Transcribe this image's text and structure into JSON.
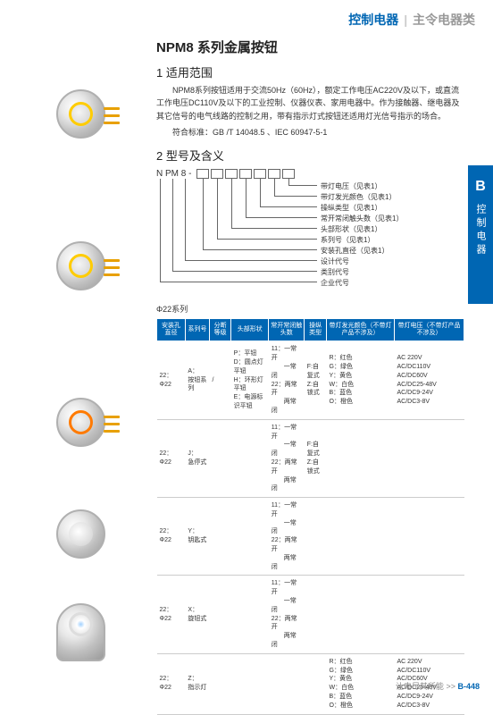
{
  "header": {
    "category1": "控制电器",
    "category2": "主令电器类"
  },
  "title": "NPM8 系列金属按钮",
  "section1": {
    "num": "1",
    "heading": "适用范围",
    "para1": "NPM8系列按钮适用于交流50Hz（60Hz），额定工作电压AC220V及以下，或直流工作电压DC110V及以下的工业控制、仪器仪表、家用电器中。作为接触器、继电器及其它信号的电气线路的控制之用，带有指示灯式按钮还适用灯光信号指示的场合。",
    "para2": "符合标准：GB /T 14048.5 、IEC 60947-5-1"
  },
  "section2": {
    "num": "2",
    "heading": "型号及含义",
    "prefix": "N PM 8 -",
    "labels": [
      "带灯电压（见表1）",
      "带灯发光颜色（见表1）",
      "操纵类型（见表1）",
      "常开常闭触头数（见表1）",
      "头部形状（见表1）",
      "系列号（见表1）",
      "安装孔直径（见表1）",
      "设计代号",
      "类别代号",
      "企业代号"
    ]
  },
  "sideTab": {
    "letter": "B",
    "text": "控制电器"
  },
  "table": {
    "caption": "Φ22系列",
    "headers": [
      "安装孔直径",
      "系列号",
      "分断等级",
      "头部形状",
      "常开常闭触头数",
      "操纵类型",
      "带灯发光颜色（不带灯产品不涉及）",
      "带灯电压（不带灯产品不涉及）"
    ],
    "rows": [
      {
        "c0": "22：Φ22",
        "c1": "A：\n按钮系列",
        "c2": "/",
        "c3": "P：平钮\nD：圆点灯平钮\nH：环形灯平钮\nE：电源标识平钮",
        "c4": "11：一常开\n　　一常闭\n22：两常开\n　　两常闭",
        "c5": "F:自复式\nZ:自锁式",
        "c6": "R：红色\nG：绿色\nY：黄色\nW：白色\nB：蓝色\nO：橙色",
        "c7": "AC 220V\nAC/DC110V\nAC/DC60V\nAC/DC25-48V\nAC/DC9-24V\nAC/DC3-8V"
      },
      {
        "c0": "22：Φ22",
        "c1": "J：\n急停式",
        "c2": "",
        "c3": "",
        "c4": "11：一常开\n　　一常闭\n22：两常开\n　　两常闭",
        "c5": "F:自复式\nZ:自锁式",
        "c6": "",
        "c7": ""
      },
      {
        "c0": "22：Φ22",
        "c1": "Y：\n钥匙式",
        "c2": "",
        "c3": "",
        "c4": "11：一常开\n　　一常闭\n22：两常开\n　　两常闭",
        "c5": "",
        "c6": "",
        "c7": ""
      },
      {
        "c0": "22：Φ22",
        "c1": "X：\n旋钮式",
        "c2": "",
        "c3": "",
        "c4": "11：一常开\n　　一常闭\n22：两常开\n　　两常闭",
        "c5": "",
        "c6": "",
        "c7": ""
      },
      {
        "c0": "22：Φ22",
        "c1": "Z：\n指示灯",
        "c2": "",
        "c3": "",
        "c4": "",
        "c5": "",
        "c6": "R：红色\nG：绿色\nY：黄色\nW：白色\nB：蓝色\nO：橙色",
        "c7": "AC 220V\nAC/DC110V\nAC/DC60V\nAC/DC25-48V\nAC/DC9-24V\nAC/DC3-8V"
      }
    ]
  },
  "footer": {
    "slogan": "让电尽其所能",
    "arrows": ">>",
    "page": "B-448"
  },
  "colors": {
    "brand_blue": "#0066b3",
    "ring_yellow": "#ffcc00"
  }
}
